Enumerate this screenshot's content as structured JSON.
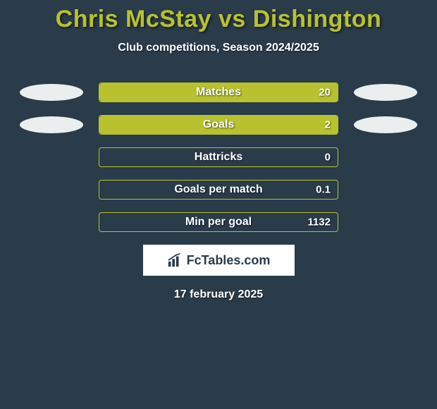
{
  "title": "Chris McStay vs Dishington",
  "subtitle": "Club competitions, Season 2024/2025",
  "date": "17 february 2025",
  "logo_text": "FcTables.com",
  "colors": {
    "background": "#2a3b4a",
    "accent": "#b8c22e",
    "text": "#ffffff",
    "ellipse": "#eaeeee",
    "logo_bg": "#ffffff",
    "logo_text": "#2a3b4a"
  },
  "bar_container_width": 340,
  "stats": [
    {
      "label": "Matches",
      "value": "20",
      "fill_pct": 100,
      "left_ellipse": true,
      "right_ellipse": true
    },
    {
      "label": "Goals",
      "value": "2",
      "fill_pct": 100,
      "left_ellipse": true,
      "right_ellipse": true
    },
    {
      "label": "Hattricks",
      "value": "0",
      "fill_pct": 0,
      "left_ellipse": false,
      "right_ellipse": false
    },
    {
      "label": "Goals per match",
      "value": "0.1",
      "fill_pct": 0,
      "left_ellipse": false,
      "right_ellipse": false
    },
    {
      "label": "Min per goal",
      "value": "1132",
      "fill_pct": 0,
      "left_ellipse": false,
      "right_ellipse": false
    }
  ]
}
